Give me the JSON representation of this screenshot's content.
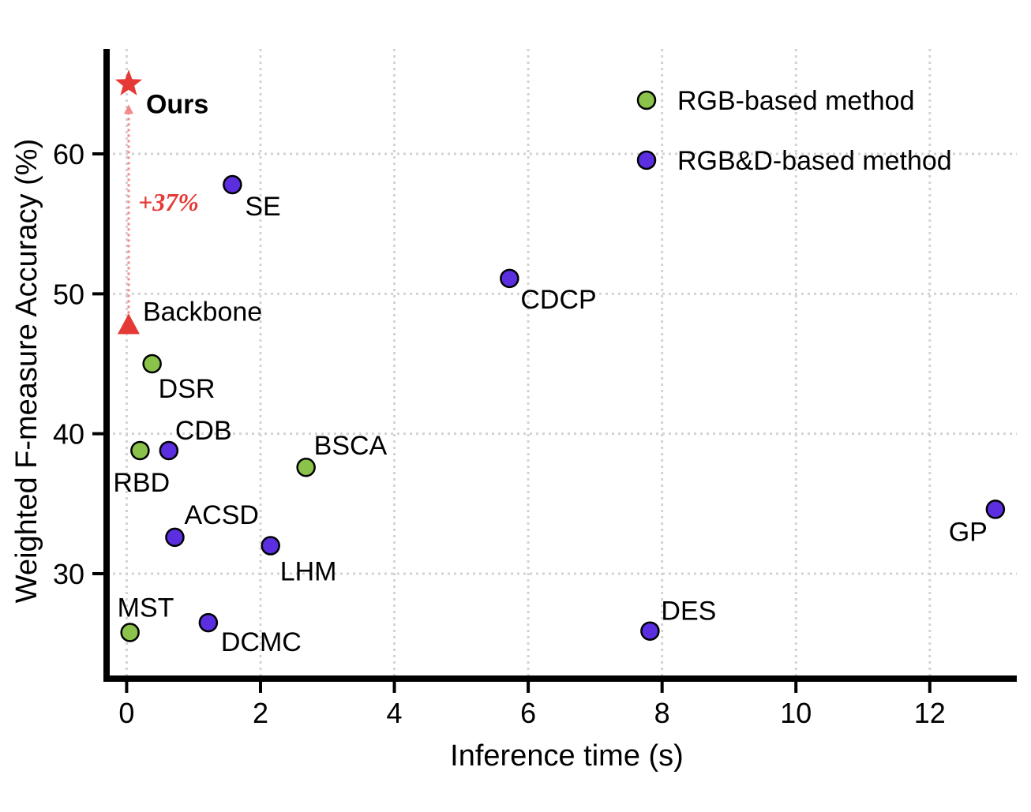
{
  "chart_data": {
    "type": "scatter",
    "xlabel": "Inference time (s)",
    "ylabel": "Weighted F-measure Accuracy (%)",
    "xlim": [
      -0.3,
      13.3
    ],
    "ylim": [
      22.5,
      67.5
    ],
    "xticks": [
      0,
      2,
      4,
      6,
      8,
      10,
      12
    ],
    "yticks": [
      30,
      40,
      50,
      60
    ],
    "grid": true,
    "legend_position": "top-right",
    "colors": {
      "rgb": "#8bc34a",
      "rgbd": "#5b2ee0",
      "highlight": "#e53935",
      "arrow": "#f08a8a"
    },
    "series": [
      {
        "name": "RGB-based method",
        "color": "#8bc34a",
        "points": [
          {
            "label": "DSR",
            "x": 0.38,
            "y": 45.0
          },
          {
            "label": "RBD",
            "x": 0.2,
            "y": 38.8
          },
          {
            "label": "BSCA",
            "x": 2.68,
            "y": 37.6
          },
          {
            "label": "MST",
            "x": 0.05,
            "y": 25.8
          }
        ]
      },
      {
        "name": "RGB&D-based method",
        "color": "#5b2ee0",
        "points": [
          {
            "label": "SE",
            "x": 1.58,
            "y": 57.8
          },
          {
            "label": "CDCP",
            "x": 5.72,
            "y": 51.1
          },
          {
            "label": "CDB",
            "x": 0.63,
            "y": 38.8
          },
          {
            "label": "ACSD",
            "x": 0.72,
            "y": 32.6
          },
          {
            "label": "LHM",
            "x": 2.15,
            "y": 32.0
          },
          {
            "label": "DCMC",
            "x": 1.22,
            "y": 26.5
          },
          {
            "label": "DES",
            "x": 7.82,
            "y": 25.9
          },
          {
            "label": "GP",
            "x": 12.98,
            "y": 34.6
          }
        ]
      }
    ],
    "highlights": [
      {
        "label": "Ours",
        "marker": "star",
        "x": 0.03,
        "y": 65.0
      },
      {
        "label": "Backbone",
        "marker": "triangle",
        "x": 0.03,
        "y": 47.8
      }
    ],
    "annotation": {
      "text": "+37%"
    }
  }
}
